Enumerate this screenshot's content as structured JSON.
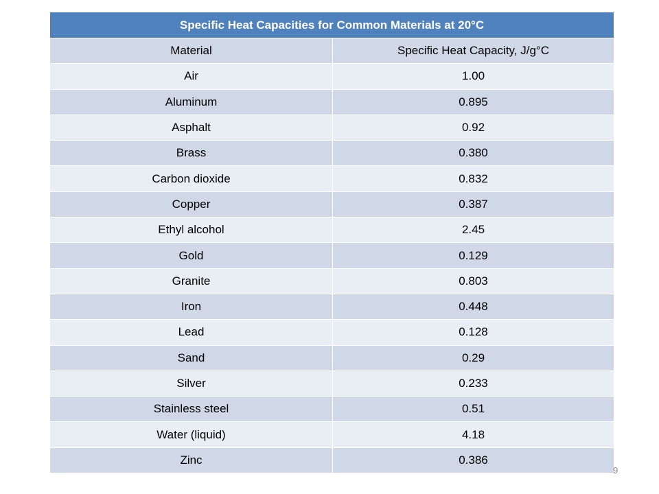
{
  "table": {
    "title": "Specific Heat Capacities for Common Materials at 20°C",
    "header": [
      "Material",
      "Specific Heat Capacity, J/g°C"
    ],
    "rows": [
      [
        "Air",
        "1.00"
      ],
      [
        "Aluminum",
        "0.895"
      ],
      [
        "Asphalt",
        "0.92"
      ],
      [
        "Brass",
        "0.380"
      ],
      [
        "Carbon dioxide",
        "0.832"
      ],
      [
        "Copper",
        "0.387"
      ],
      [
        "Ethyl alcohol",
        "2.45"
      ],
      [
        "Gold",
        "0.129"
      ],
      [
        "Granite",
        "0.803"
      ],
      [
        "Iron",
        "0.448"
      ],
      [
        "Lead",
        "0.128"
      ],
      [
        "Sand",
        "0.29"
      ],
      [
        "Silver",
        "0.233"
      ],
      [
        "Stainless steel",
        "0.51"
      ],
      [
        "Water (liquid)",
        "4.18"
      ],
      [
        "Zinc",
        "0.386"
      ]
    ]
  },
  "page_number": "9"
}
